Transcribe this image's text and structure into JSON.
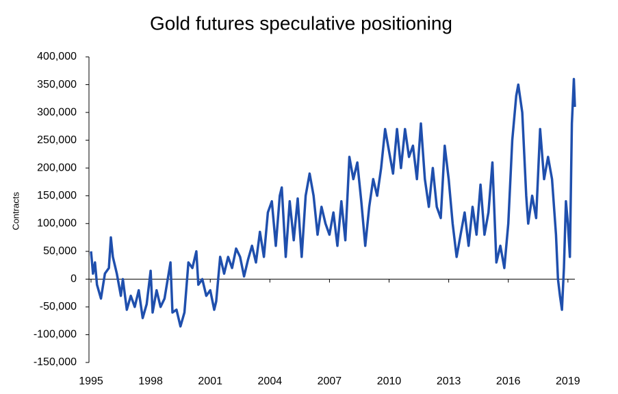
{
  "chart_data": {
    "type": "line",
    "title": "Gold futures speculative positioning",
    "y_label": "Contracts",
    "xlim": [
      1995,
      2019.35
    ],
    "xticks": [
      1995,
      1998,
      2001,
      2004,
      2007,
      2010,
      2013,
      2016,
      2019
    ],
    "ylim": [
      -150000,
      400000
    ],
    "yticks": [
      {
        "value": 400000,
        "label": "400,000"
      },
      {
        "value": 350000,
        "label": "350,000"
      },
      {
        "value": 300000,
        "label": "300,000"
      },
      {
        "value": 250000,
        "label": "250,000"
      },
      {
        "value": 200000,
        "label": "200,000"
      },
      {
        "value": 150000,
        "label": "150,000"
      },
      {
        "value": 100000,
        "label": "100,000"
      },
      {
        "value": 50000,
        "label": "50,000"
      },
      0,
      {
        "value": -50000,
        "label": "-50,000"
      },
      {
        "value": -100000,
        "label": "-100,000"
      },
      {
        "value": -150000,
        "label": "-150,000"
      }
    ],
    "color": "#1f4fad",
    "x": [
      1995.0,
      1995.1,
      1995.2,
      1995.3,
      1995.5,
      1995.7,
      1995.9,
      1996.0,
      1996.1,
      1996.3,
      1996.5,
      1996.6,
      1996.8,
      1997.0,
      1997.2,
      1997.4,
      1997.6,
      1997.8,
      1998.0,
      1998.1,
      1998.3,
      1998.5,
      1998.7,
      1999.0,
      1999.1,
      1999.3,
      1999.5,
      1999.7,
      1999.9,
      2000.1,
      2000.3,
      2000.4,
      2000.6,
      2000.8,
      2001.0,
      2001.2,
      2001.3,
      2001.5,
      2001.7,
      2001.9,
      2002.1,
      2002.3,
      2002.5,
      2002.7,
      2002.9,
      2003.1,
      2003.3,
      2003.5,
      2003.7,
      2003.9,
      2004.1,
      2004.3,
      2004.5,
      2004.6,
      2004.8,
      2005.0,
      2005.2,
      2005.4,
      2005.6,
      2005.8,
      2006.0,
      2006.2,
      2006.4,
      2006.6,
      2006.8,
      2007.0,
      2007.2,
      2007.4,
      2007.6,
      2007.8,
      2008.0,
      2008.2,
      2008.4,
      2008.6,
      2008.8,
      2009.0,
      2009.2,
      2009.4,
      2009.6,
      2009.8,
      2010.0,
      2010.2,
      2010.4,
      2010.6,
      2010.8,
      2011.0,
      2011.2,
      2011.4,
      2011.6,
      2011.8,
      2012.0,
      2012.2,
      2012.4,
      2012.6,
      2012.8,
      2013.0,
      2013.2,
      2013.4,
      2013.6,
      2013.8,
      2014.0,
      2014.2,
      2014.4,
      2014.6,
      2014.8,
      2015.0,
      2015.2,
      2015.4,
      2015.6,
      2015.8,
      2016.0,
      2016.2,
      2016.4,
      2016.5,
      2016.7,
      2016.9,
      2017.0,
      2017.2,
      2017.4,
      2017.6,
      2017.8,
      2018.0,
      2018.2,
      2018.4,
      2018.5,
      2018.6,
      2018.7,
      2018.8,
      2018.9,
      2019.0,
      2019.1,
      2019.2,
      2019.3,
      2019.35
    ],
    "values": [
      50000,
      10000,
      30000,
      -10000,
      -35000,
      10000,
      20000,
      75000,
      40000,
      10000,
      -30000,
      0,
      -55000,
      -30000,
      -50000,
      -20000,
      -70000,
      -45000,
      15000,
      -60000,
      -20000,
      -50000,
      -35000,
      30000,
      -60000,
      -55000,
      -85000,
      -60000,
      30000,
      20000,
      50000,
      -10000,
      0,
      -30000,
      -20000,
      -55000,
      -40000,
      40000,
      10000,
      40000,
      20000,
      55000,
      40000,
      5000,
      35000,
      60000,
      30000,
      85000,
      40000,
      120000,
      140000,
      60000,
      150000,
      165000,
      40000,
      140000,
      70000,
      145000,
      40000,
      150000,
      190000,
      150000,
      80000,
      130000,
      100000,
      80000,
      120000,
      60000,
      140000,
      70000,
      220000,
      180000,
      210000,
      140000,
      60000,
      130000,
      180000,
      150000,
      200000,
      270000,
      230000,
      190000,
      270000,
      200000,
      270000,
      220000,
      240000,
      180000,
      280000,
      180000,
      130000,
      200000,
      130000,
      110000,
      240000,
      180000,
      100000,
      40000,
      80000,
      120000,
      60000,
      130000,
      80000,
      170000,
      80000,
      120000,
      210000,
      30000,
      60000,
      20000,
      100000,
      250000,
      330000,
      350000,
      300000,
      150000,
      100000,
      150000,
      110000,
      270000,
      180000,
      220000,
      180000,
      80000,
      0,
      -30000,
      -55000,
      20000,
      140000,
      100000,
      40000,
      280000,
      360000,
      310000
    ]
  }
}
